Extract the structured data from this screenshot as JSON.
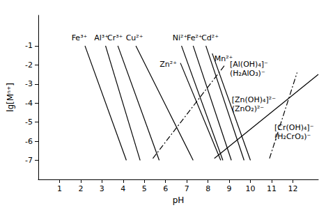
{
  "chart_data": {
    "type": "line",
    "x_label": "pH",
    "y_label": "lg[Mⁿ⁺]",
    "xlim": [
      0,
      13.2
    ],
    "ylim": [
      -8,
      0.6
    ],
    "xticks": [
      1,
      2,
      3,
      4,
      5,
      6,
      7,
      8,
      9,
      10,
      11,
      12
    ],
    "yticks": [
      -7,
      -6,
      -5,
      -4,
      -3,
      -2,
      -1
    ],
    "grid": false,
    "series": [
      {
        "name": "Fe³⁺",
        "color": "#000000",
        "line_style": "solid",
        "x": [
          2.2,
          4.15
        ],
        "values": [
          -1,
          -7
        ]
      },
      {
        "name": "Al³⁺",
        "color": "#000000",
        "line_style": "solid",
        "x": [
          3.17,
          4.8
        ],
        "values": [
          -1,
          -7
        ]
      },
      {
        "name": "Cr³⁺",
        "color": "#000000",
        "line_style": "solid",
        "x": [
          3.75,
          5.7
        ],
        "values": [
          -1,
          -7
        ]
      },
      {
        "name": "Cu²⁺",
        "color": "#000000",
        "line_style": "solid",
        "x": [
          4.6,
          7.3
        ],
        "values": [
          -1,
          -7
        ]
      },
      {
        "name": "Zn²⁺",
        "color": "#000000",
        "line_style": "solid",
        "x": [
          6.7,
          8.6
        ],
        "values": [
          -1.9,
          -7
        ]
      },
      {
        "name": "Ni²⁺",
        "color": "#000000",
        "line_style": "solid",
        "x": [
          6.75,
          8.7
        ],
        "values": [
          -1,
          -7
        ]
      },
      {
        "name": "Fe²⁺",
        "color": "#000000",
        "line_style": "solid",
        "x": [
          7.3,
          9.1
        ],
        "values": [
          -1,
          -7
        ]
      },
      {
        "name": "Cd²⁺",
        "color": "#000000",
        "line_style": "solid",
        "x": [
          7.9,
          9.7
        ],
        "values": [
          -1,
          -7
        ]
      },
      {
        "name": "Mn²⁺",
        "color": "#000000",
        "line_style": "solid",
        "x": [
          8.2,
          10.0
        ],
        "values": [
          -1.4,
          -7
        ]
      },
      {
        "name": "[Al(OH)₄]⁻\n(H₂AlO₃)⁻",
        "color": "#000000",
        "line_style": "dashdot",
        "x": [
          5.4,
          8.8
        ],
        "values": [
          -6.9,
          -2.0
        ]
      },
      {
        "name": "[Zn(OH)₄]²⁻\n(ZnO₂)²⁻",
        "color": "#000000",
        "line_style": "solid",
        "x": [
          8.3,
          13.2
        ],
        "values": [
          -6.9,
          -2.5
        ]
      },
      {
        "name": "[Cr(OH)₄]⁻\n(H₂CrO₃)⁻",
        "color": "#000000",
        "line_style": "dashdot",
        "x": [
          10.9,
          12.2
        ],
        "values": [
          -6.9,
          -2.4
        ]
      }
    ]
  }
}
